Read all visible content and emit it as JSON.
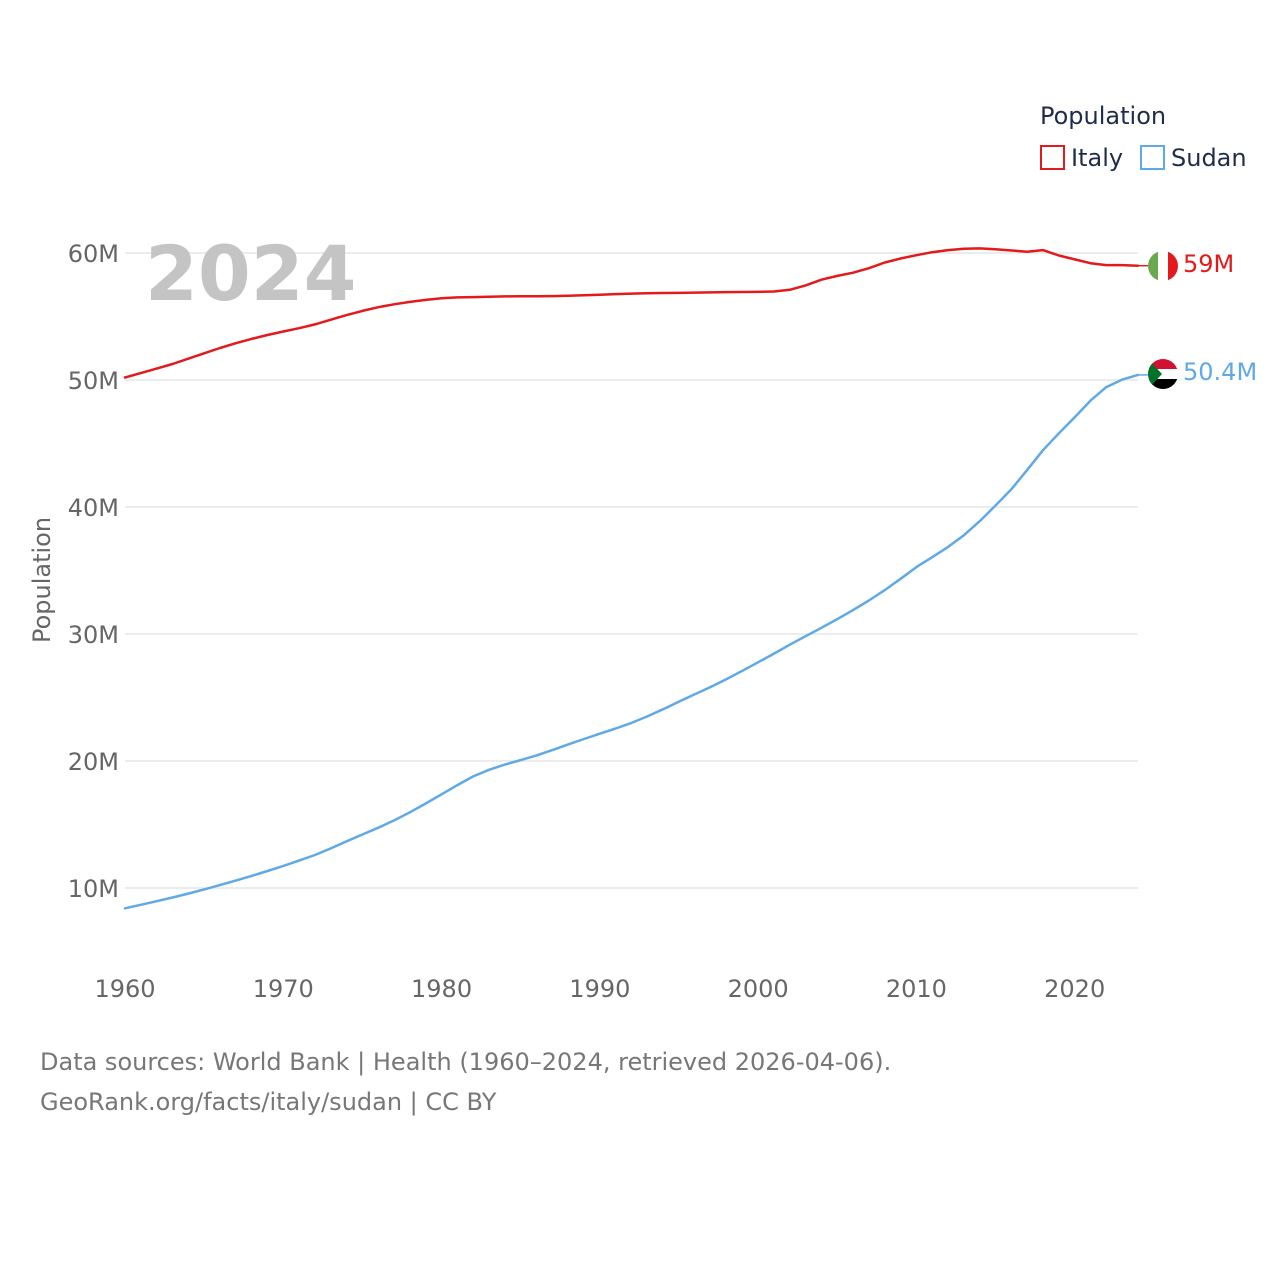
{
  "chart_data": {
    "type": "line",
    "title": "",
    "watermark_year": "2024",
    "legend_title": "Population",
    "xlabel": "",
    "ylabel": "Population",
    "xlim": [
      1960,
      2024
    ],
    "ylim": [
      5000000,
      62000000
    ],
    "x_ticks": [
      1960,
      1970,
      1980,
      1990,
      2000,
      2010,
      2020
    ],
    "y_ticks": [
      10000000,
      20000000,
      30000000,
      40000000,
      50000000,
      60000000
    ],
    "y_tick_labels": [
      "10M",
      "20M",
      "30M",
      "40M",
      "50M",
      "60M"
    ],
    "x": [
      1960,
      1961,
      1962,
      1963,
      1964,
      1965,
      1966,
      1967,
      1968,
      1969,
      1970,
      1971,
      1972,
      1973,
      1974,
      1975,
      1976,
      1977,
      1978,
      1979,
      1980,
      1981,
      1982,
      1983,
      1984,
      1985,
      1986,
      1987,
      1988,
      1989,
      1990,
      1991,
      1992,
      1993,
      1994,
      1995,
      1996,
      1997,
      1998,
      1999,
      2000,
      2001,
      2002,
      2003,
      2004,
      2005,
      2006,
      2007,
      2008,
      2009,
      2010,
      2011,
      2012,
      2013,
      2014,
      2015,
      2016,
      2017,
      2018,
      2019,
      2020,
      2021,
      2022,
      2023,
      2024
    ],
    "series": [
      {
        "name": "Italy",
        "color": "#e31a1c",
        "end_label": "59M",
        "flag": "italy-flag",
        "values": [
          50200000,
          50540000,
          50900000,
          51260000,
          51680000,
          52100000,
          52520000,
          52900000,
          53240000,
          53540000,
          53820000,
          54080000,
          54380000,
          54750000,
          55110000,
          55440000,
          55730000,
          55960000,
          56150000,
          56310000,
          56430000,
          56500000,
          56530000,
          56560000,
          56580000,
          56590000,
          56600000,
          56610000,
          56640000,
          56670000,
          56720000,
          56760000,
          56800000,
          56830000,
          56850000,
          56860000,
          56880000,
          56900000,
          56920000,
          56930000,
          56940000,
          56970000,
          57100000,
          57450000,
          57900000,
          58200000,
          58450000,
          58800000,
          59250000,
          59570000,
          59830000,
          60060000,
          60230000,
          60340000,
          60360000,
          60290000,
          60200000,
          60100000,
          60230000,
          59800000,
          59500000,
          59200000,
          59050000,
          59050000,
          59000000
        ]
      },
      {
        "name": "Sudan",
        "color": "#5fa9e6",
        "end_label": "50.4M",
        "flag": "sudan-flag",
        "values": [
          8400000,
          8680000,
          8960000,
          9250000,
          9560000,
          9890000,
          10230000,
          10580000,
          10950000,
          11340000,
          11740000,
          12160000,
          12600000,
          13120000,
          13680000,
          14210000,
          14750000,
          15320000,
          15960000,
          16650000,
          17380000,
          18100000,
          18790000,
          19310000,
          19720000,
          20070000,
          20440000,
          20860000,
          21310000,
          21730000,
          22150000,
          22560000,
          23000000,
          23510000,
          24080000,
          24680000,
          25260000,
          25830000,
          26450000,
          27100000,
          27770000,
          28460000,
          29160000,
          29830000,
          30490000,
          31170000,
          31880000,
          32640000,
          33460000,
          34350000,
          35270000,
          36050000,
          36860000,
          37780000,
          38880000,
          40120000,
          41400000,
          42920000,
          44470000,
          45800000,
          47070000,
          48380000,
          49440000,
          50030000,
          50400000
        ]
      }
    ]
  },
  "footer": {
    "line1": "Data sources: World Bank | Health (1960–2024, retrieved 2026-04-06).",
    "line2": "GeoRank.org/facts/italy/sudan | CC BY"
  }
}
